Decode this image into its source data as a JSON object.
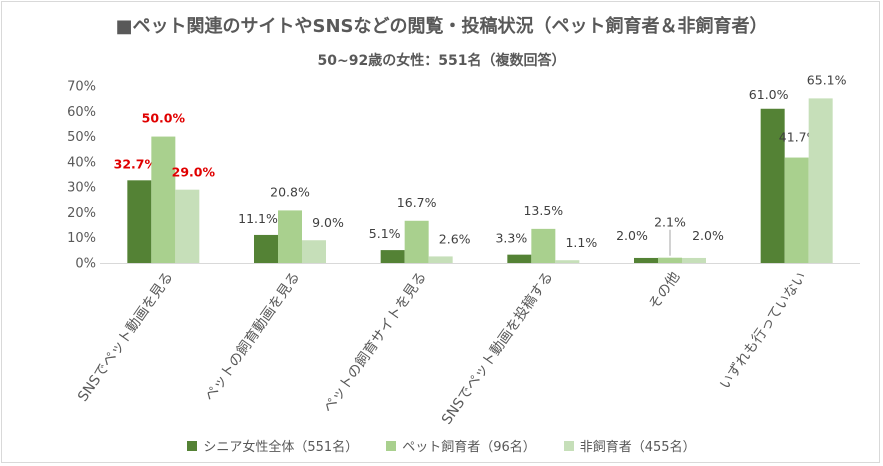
{
  "chart_data": {
    "type": "bar",
    "title": "■ペット関連のサイトやSNSなどの閲覧・投稿状況（ペット飼育者＆非飼育者）",
    "subtitle": "50~92歳の女性：551名（複数回答）",
    "categories": [
      "SNSでペット動画を見る",
      "ペットの飼育動画を見る",
      "ペットの飼育サイトを見る",
      "SNSでペット動画を投稿する",
      "その他",
      "いずれも行っていない"
    ],
    "series": [
      {
        "name": "シニア女性全体（551名）",
        "values": [
          32.7,
          11.1,
          5.1,
          3.3,
          2.0,
          61.0
        ],
        "labels": [
          "32.7%",
          "11.1%",
          "5.1%",
          "3.3%",
          "2.0%",
          "61.0%"
        ],
        "color": "#548235"
      },
      {
        "name": "ペット飼育者（96名）",
        "values": [
          50.0,
          20.8,
          16.7,
          13.5,
          2.1,
          41.7
        ],
        "labels": [
          "50.0%",
          "20.8%",
          "16.7%",
          "13.5%",
          "2.1%",
          "41.7%"
        ],
        "color": "#a9d08e"
      },
      {
        "name": "非飼育者（455名）",
        "values": [
          29.0,
          9.0,
          2.6,
          1.1,
          2.0,
          65.1
        ],
        "labels": [
          "29.0%",
          "9.0%",
          "2.6%",
          "1.1%",
          "2.0%",
          "65.1%"
        ],
        "color": "#c6dfb9"
      }
    ],
    "highlight_color": "#e00000",
    "ylim": [
      0,
      70
    ],
    "yticks": [
      "0%",
      "10%",
      "20%",
      "30%",
      "40%",
      "50%",
      "60%",
      "70%"
    ],
    "legend_position": "bottom",
    "grid": false
  }
}
